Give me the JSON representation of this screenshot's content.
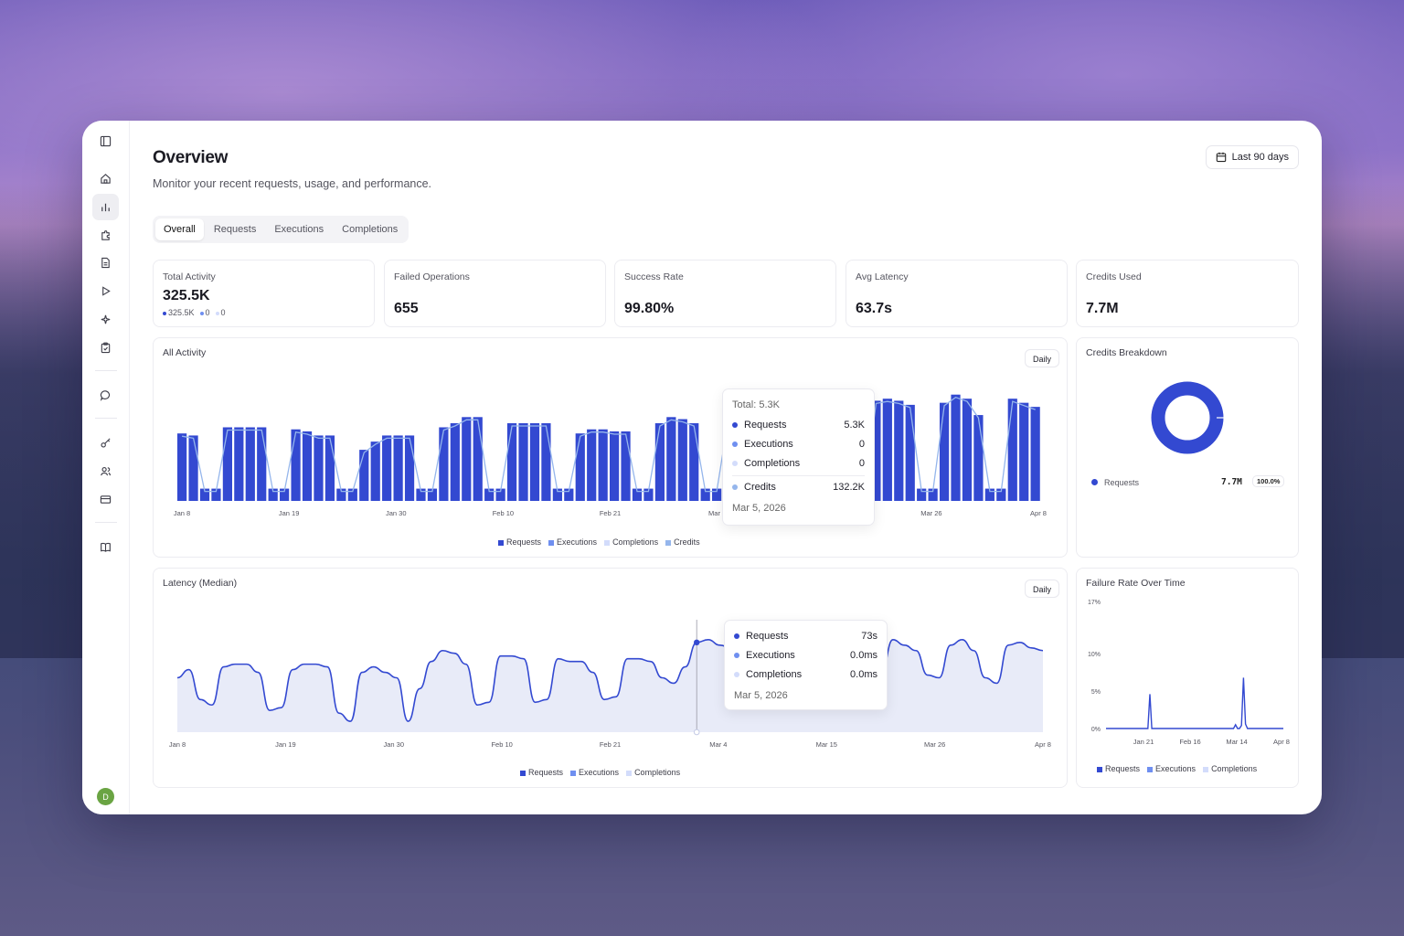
{
  "colors": {
    "requests": "#3349d1",
    "executions": "#6f8ff0",
    "completions": "#d3dcfb",
    "credits": "#95b6ec",
    "area_fill": "#e8ebf8"
  },
  "header": {
    "title": "Overview",
    "subtitle": "Monitor your recent requests, usage, and performance.",
    "date_range": "Last 90 days"
  },
  "tabs": [
    {
      "label": "Overall",
      "active": true
    },
    {
      "label": "Requests",
      "active": false
    },
    {
      "label": "Executions",
      "active": false
    },
    {
      "label": "Completions",
      "active": false
    }
  ],
  "sidebar": {
    "icons": [
      "sidebar-toggle-icon",
      "home-icon",
      "analytics-icon",
      "puzzle-icon",
      "document-icon",
      "play-icon",
      "sparkles-icon",
      "clipboard-icon",
      "chat-icon",
      "key-icon",
      "users-icon",
      "credit-card-icon",
      "book-icon"
    ],
    "active": "analytics-icon",
    "avatar_initial": "D"
  },
  "stats": {
    "total_activity": {
      "label": "Total Activity",
      "value": "325.5K",
      "mini": [
        "325.5K",
        "0",
        "0"
      ]
    },
    "failed_operations": {
      "label": "Failed Operations",
      "value": "655"
    },
    "success_rate": {
      "label": "Success Rate",
      "value": "99.80%"
    },
    "avg_latency": {
      "label": "Avg Latency",
      "value": "63.7s"
    },
    "credits_used": {
      "label": "Credits Used",
      "value": "7.7M"
    }
  },
  "all_activity": {
    "title": "All Activity",
    "granularity": "Daily",
    "tooltip": {
      "total": "Total: 5.3K",
      "rows": [
        {
          "name": "Requests",
          "value": "5.3K"
        },
        {
          "name": "Executions",
          "value": "0"
        },
        {
          "name": "Completions",
          "value": "0"
        }
      ],
      "credits": {
        "name": "Credits",
        "value": "132.2K"
      },
      "date": "Mar 5, 2026"
    },
    "legend": [
      "Requests",
      "Executions",
      "Completions",
      "Credits"
    ]
  },
  "credits_breakdown": {
    "title": "Credits Breakdown",
    "row": {
      "name": "Requests",
      "value": "7.7M",
      "pct": "100.0%"
    }
  },
  "latency": {
    "title": "Latency (Median)",
    "granularity": "Daily",
    "tooltip": {
      "rows": [
        {
          "name": "Requests",
          "value": "73s"
        },
        {
          "name": "Executions",
          "value": "0.0ms"
        },
        {
          "name": "Completions",
          "value": "0.0ms"
        }
      ],
      "date": "Mar 5, 2026"
    },
    "legend": [
      "Requests",
      "Executions",
      "Completions"
    ]
  },
  "failure_rate": {
    "title": "Failure Rate Over Time",
    "legend": [
      "Requests",
      "Executions",
      "Completions"
    ]
  },
  "chart_data": [
    {
      "type": "bar",
      "title": "All Activity",
      "series_names": [
        "Requests",
        "Credits"
      ],
      "x_ticks": [
        "Jan 8",
        "Jan 19",
        "Jan 30",
        "Feb 10",
        "Feb 21",
        "Mar 4",
        "Mar 15",
        "Mar 26",
        "Apr 8"
      ],
      "ylim": [
        0,
        5.5
      ],
      "y_unit": "K",
      "values": [
        3.3,
        3.2,
        0.6,
        0.6,
        3.6,
        3.6,
        3.6,
        3.6,
        0.6,
        0.6,
        3.5,
        3.4,
        3.2,
        3.2,
        0.6,
        0.6,
        2.5,
        2.9,
        3.2,
        3.2,
        3.2,
        0.6,
        0.6,
        3.6,
        3.8,
        4.1,
        4.1,
        0.6,
        0.6,
        3.8,
        3.8,
        3.8,
        3.8,
        0.6,
        0.6,
        3.3,
        3.5,
        3.5,
        3.4,
        3.4,
        0.6,
        0.6,
        3.8,
        4.1,
        4.0,
        3.8,
        0.6,
        0.6,
        4.1,
        4.2,
        4.6,
        4.8,
        5.3,
        0.6,
        0.6,
        4.8,
        4.9,
        4.9,
        5.0,
        0.6,
        0.6,
        4.9,
        5.0,
        4.9,
        4.7,
        0.6,
        0.6,
        4.8,
        5.2,
        5.0,
        4.2,
        0.6,
        0.6,
        5.0,
        4.8,
        4.6
      ],
      "credits_line": true
    },
    {
      "type": "area",
      "title": "Latency (Median)",
      "series_names": [
        "Requests"
      ],
      "x_ticks": [
        "Jan 8",
        "Jan 19",
        "Jan 30",
        "Feb 10",
        "Feb 21",
        "Mar 4",
        "Mar 15",
        "Mar 26",
        "Apr 8"
      ],
      "y_unit": "s",
      "values": [
        60,
        63,
        52,
        50,
        64,
        65,
        65,
        62,
        48,
        49,
        63,
        65,
        65,
        64,
        47,
        44,
        62,
        64,
        62,
        60,
        44,
        56,
        66,
        70,
        69,
        65,
        50,
        51,
        68,
        68,
        67,
        51,
        52,
        67,
        66,
        66,
        62,
        52,
        53,
        67,
        67,
        66,
        60,
        58,
        64,
        73,
        74,
        72,
        71,
        62,
        61,
        73,
        74,
        74,
        70,
        60,
        61,
        72,
        74,
        70,
        60,
        62,
        74,
        72,
        70,
        61,
        60,
        72,
        74,
        70,
        60,
        58,
        72,
        73,
        71,
        70
      ]
    },
    {
      "type": "line",
      "title": "Failure Rate Over Time",
      "series_names": [
        "Requests"
      ],
      "x_ticks": [
        "Jan 21",
        "Feb 16",
        "Mar 14",
        "Apr 8"
      ],
      "y_ticks": [
        "17%",
        "10%",
        "5%",
        "0%"
      ],
      "ylim": [
        0,
        17
      ],
      "values": [
        0,
        0,
        0,
        0,
        0,
        0,
        0,
        0,
        0,
        0,
        0,
        0,
        0,
        0,
        0,
        0,
        0,
        0,
        0,
        0,
        0,
        0,
        4.6,
        0,
        0,
        0,
        0,
        0,
        0,
        0,
        0,
        0,
        0,
        0,
        0,
        0,
        0,
        0,
        0,
        0,
        0,
        0,
        0,
        0,
        0,
        0,
        0,
        0,
        0,
        0,
        0,
        0,
        0,
        0,
        0,
        0,
        0,
        0,
        0,
        0,
        0,
        0,
        0,
        0,
        0,
        0.5,
        0,
        0,
        0.4,
        6.8,
        0.6,
        0,
        0,
        0,
        0,
        0,
        0,
        0,
        0,
        0,
        0,
        0,
        0,
        0,
        0,
        0,
        0,
        0,
        0,
        0
      ]
    }
  ]
}
